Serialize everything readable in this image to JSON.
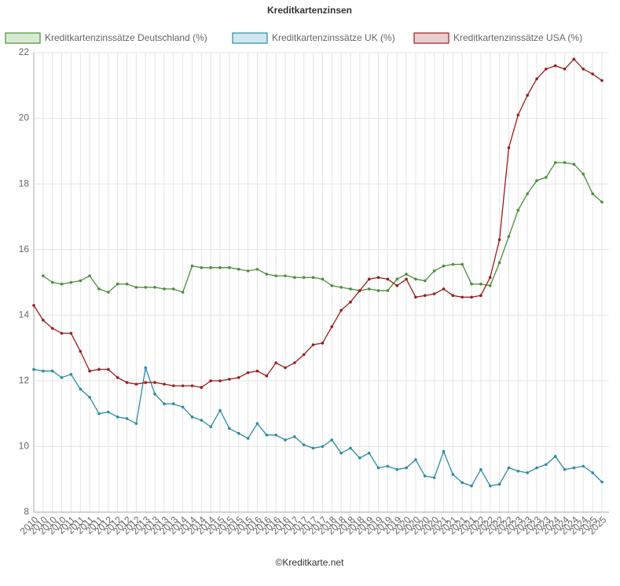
{
  "chart_data": {
    "type": "line",
    "title": "Kreditkartenzinsen",
    "footer": "©Kreditkarte.net",
    "categories": [
      "2010",
      "2010",
      "2010",
      "2010",
      "2011",
      "2011",
      "2011",
      "2011",
      "2012",
      "2012",
      "2012",
      "2012",
      "2013",
      "2013",
      "2013",
      "2013",
      "2014",
      "2014",
      "2014",
      "2014",
      "2015",
      "2015",
      "2015",
      "2015",
      "2016",
      "2016",
      "2016",
      "2016",
      "2017",
      "2017",
      "2017",
      "2017",
      "2018",
      "2018",
      "2018",
      "2018",
      "2019",
      "2019",
      "2019",
      "2019",
      "2020",
      "2020",
      "2020",
      "2020",
      "2021",
      "2021",
      "2021",
      "2021",
      "2022",
      "2022",
      "2022",
      "2022",
      "2023",
      "2023",
      "2023",
      "2023",
      "2024",
      "2024",
      "2024",
      "2024",
      "2025",
      "2025"
    ],
    "series": [
      {
        "name": "Kreditkartenzinssätze Deutschland (%)",
        "color": "#4a8f3a",
        "fill": "#d9ead3",
        "values": [
          null,
          15.2,
          15.0,
          14.95,
          15.0,
          15.05,
          15.2,
          14.8,
          14.7,
          14.95,
          14.95,
          14.85,
          14.85,
          14.85,
          14.8,
          14.8,
          14.7,
          15.5,
          15.45,
          15.45,
          15.45,
          15.45,
          15.4,
          15.35,
          15.4,
          15.25,
          15.2,
          15.2,
          15.15,
          15.15,
          15.15,
          15.1,
          14.9,
          14.85,
          14.8,
          14.75,
          14.8,
          14.75,
          14.75,
          15.1,
          15.25,
          15.1,
          15.05,
          15.35,
          15.5,
          15.55,
          15.55,
          14.95,
          14.95,
          14.9,
          15.6,
          16.4,
          17.2,
          17.7,
          18.1,
          18.2,
          18.65,
          18.65,
          18.6,
          18.3,
          17.7,
          17.45
        ]
      },
      {
        "name": "Kreditkartenzinssätze UK (%)",
        "color": "#2b8ca3",
        "fill": "#d0e8ee",
        "values": [
          12.35,
          12.3,
          12.3,
          12.1,
          12.2,
          11.75,
          11.5,
          11.0,
          11.05,
          10.9,
          10.85,
          10.7,
          12.4,
          11.6,
          11.3,
          11.3,
          11.2,
          10.9,
          10.8,
          10.6,
          11.1,
          10.55,
          10.4,
          10.25,
          10.7,
          10.35,
          10.35,
          10.2,
          10.3,
          10.05,
          9.95,
          10.0,
          10.2,
          9.8,
          9.95,
          9.65,
          9.8,
          9.35,
          9.4,
          9.3,
          9.35,
          9.6,
          9.1,
          9.05,
          9.85,
          9.15,
          8.9,
          8.8,
          9.3,
          8.8,
          8.85,
          9.35,
          9.25,
          9.2,
          9.35,
          9.45,
          9.7,
          9.3,
          9.35,
          9.4,
          9.2,
          8.92
        ]
      },
      {
        "name": "Kreditkartenzinssätze USA (%)",
        "color": "#9b1c1c",
        "fill": "#ebcfcf",
        "values": [
          14.3,
          13.85,
          13.6,
          13.45,
          13.45,
          12.9,
          12.3,
          12.35,
          12.35,
          12.1,
          11.95,
          11.9,
          11.95,
          11.95,
          11.9,
          11.85,
          11.85,
          11.85,
          11.8,
          12.0,
          12.0,
          12.05,
          12.1,
          12.25,
          12.3,
          12.15,
          12.55,
          12.4,
          12.55,
          12.8,
          13.1,
          13.15,
          13.65,
          14.15,
          14.4,
          14.75,
          15.1,
          15.15,
          15.1,
          14.9,
          15.1,
          14.55,
          14.6,
          14.65,
          14.8,
          14.6,
          14.55,
          14.55,
          14.6,
          15.15,
          16.3,
          19.1,
          20.1,
          20.7,
          21.2,
          21.5,
          21.6,
          21.5,
          21.8,
          21.5,
          21.35,
          21.15
        ]
      }
    ],
    "ylim": [
      8,
      22
    ],
    "yticks": [
      8,
      10,
      12,
      14,
      16,
      18,
      20,
      22
    ],
    "grid": true,
    "legend": "top"
  }
}
